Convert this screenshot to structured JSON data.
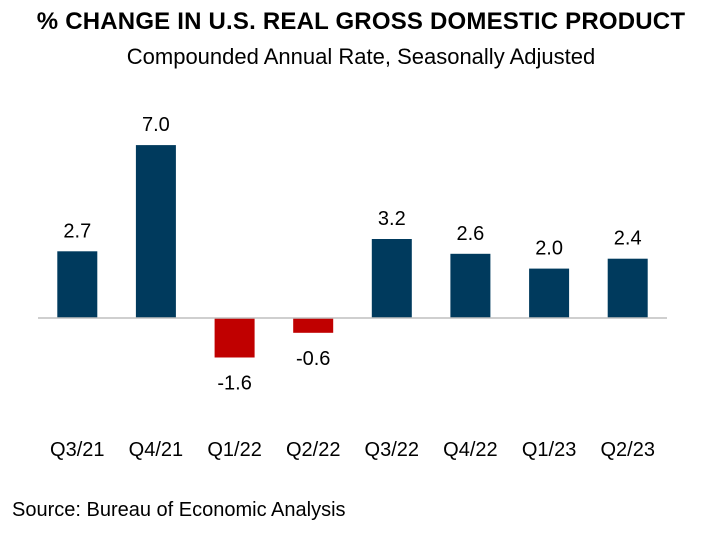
{
  "chart_data": {
    "type": "bar",
    "title": "% CHANGE IN U.S. REAL GROSS DOMESTIC PRODUCT",
    "subtitle": "Compounded Annual Rate, Seasonally Adjusted",
    "categories": [
      "Q3/21",
      "Q4/21",
      "Q1/22",
      "Q2/22",
      "Q3/22",
      "Q4/22",
      "Q1/23",
      "Q2/23"
    ],
    "values": [
      2.7,
      7.0,
      -1.6,
      -0.6,
      3.2,
      2.6,
      2.0,
      2.4
    ],
    "labels": [
      "2.7",
      "7.0",
      "-1.6",
      "-0.6",
      "3.2",
      "2.6",
      "2.0",
      "2.4"
    ],
    "colors": {
      "positive": "#003A5D",
      "negative": "#C00000",
      "axis": "#BFBFBF"
    },
    "xlabel": "",
    "ylabel": "",
    "ylim": [
      -1.6,
      7.0
    ],
    "grid": false,
    "legend": "none"
  },
  "source": "Source: Bureau of Economic Analysis"
}
